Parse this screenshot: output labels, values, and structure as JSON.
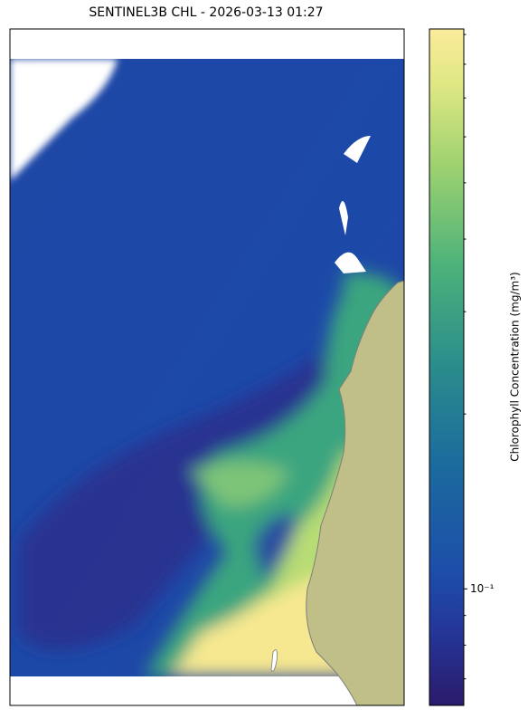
{
  "title": "SENTINEL3B CHL - 2026-03-13 01:27",
  "colorbar": {
    "label": "Chlorophyll Concentration (mg/m³)",
    "scale": "log",
    "lim": [
      0.063,
      0.92
    ],
    "ticks": [
      {
        "value": 0.1,
        "label": "10⁻¹"
      }
    ],
    "minor_ticks": [
      0.07,
      0.08,
      0.09,
      0.2,
      0.3,
      0.4,
      0.5,
      0.6,
      0.7,
      0.8,
      0.9
    ]
  }
}
